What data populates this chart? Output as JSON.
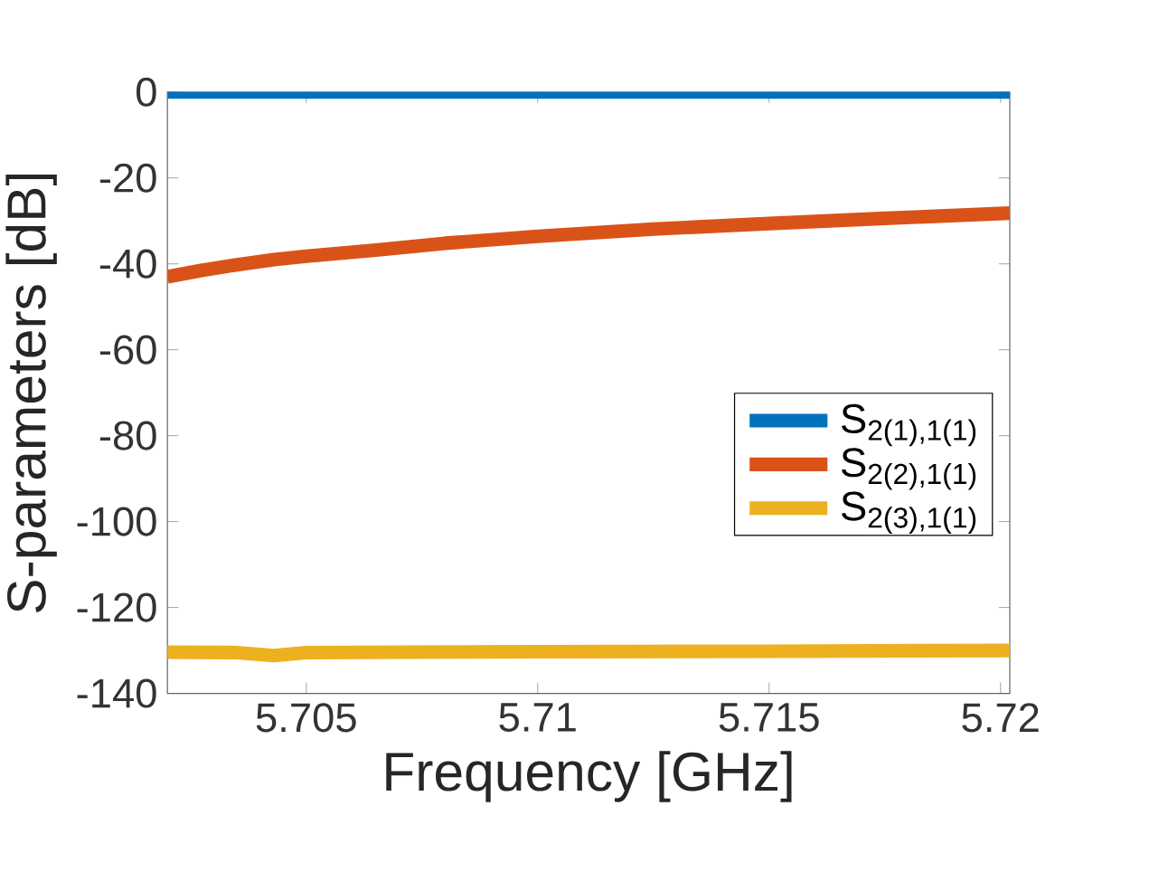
{
  "chart_data": {
    "type": "line",
    "xlabel": "Frequency [GHz]",
    "ylabel": "S-parameters [dB]",
    "xlim": [
      5.702,
      5.7202
    ],
    "ylim": [
      -140,
      0
    ],
    "xticks": [
      5.705,
      5.71,
      5.715,
      5.72
    ],
    "yticks": [
      -140,
      -120,
      -100,
      -80,
      -60,
      -40,
      -20,
      0
    ],
    "grid": false,
    "legend": "right",
    "marker": "none",
    "line_style": "solid",
    "series": [
      {
        "name": "S$_{2(1),1(1)}$",
        "color": "#0072bd",
        "x": [
          5.702,
          5.706,
          5.71,
          5.714,
          5.7202
        ],
        "values": [
          0,
          0,
          0,
          0,
          0
        ]
      },
      {
        "name": "S$_{2(2),1(1)}$",
        "color": "#d95319",
        "x": [
          5.702,
          5.7027,
          5.7035,
          5.7043,
          5.705,
          5.7065,
          5.708,
          5.71,
          5.7125,
          5.715,
          5.7175,
          5.7202
        ],
        "values": [
          -43,
          -41.6,
          -40.2,
          -39,
          -38.2,
          -36.8,
          -35.2,
          -33.6,
          -31.9,
          -30.6,
          -29.4,
          -28.2
        ]
      },
      {
        "name": "S$_{2(3),1(1)}$",
        "color": "#edb120",
        "x": [
          5.702,
          5.7035,
          5.7043,
          5.705,
          5.707,
          5.71,
          5.715,
          5.7202
        ],
        "values": [
          -130.4,
          -130.5,
          -131.2,
          -130.5,
          -130.4,
          -130.3,
          -130.2,
          -130
        ]
      }
    ]
  }
}
